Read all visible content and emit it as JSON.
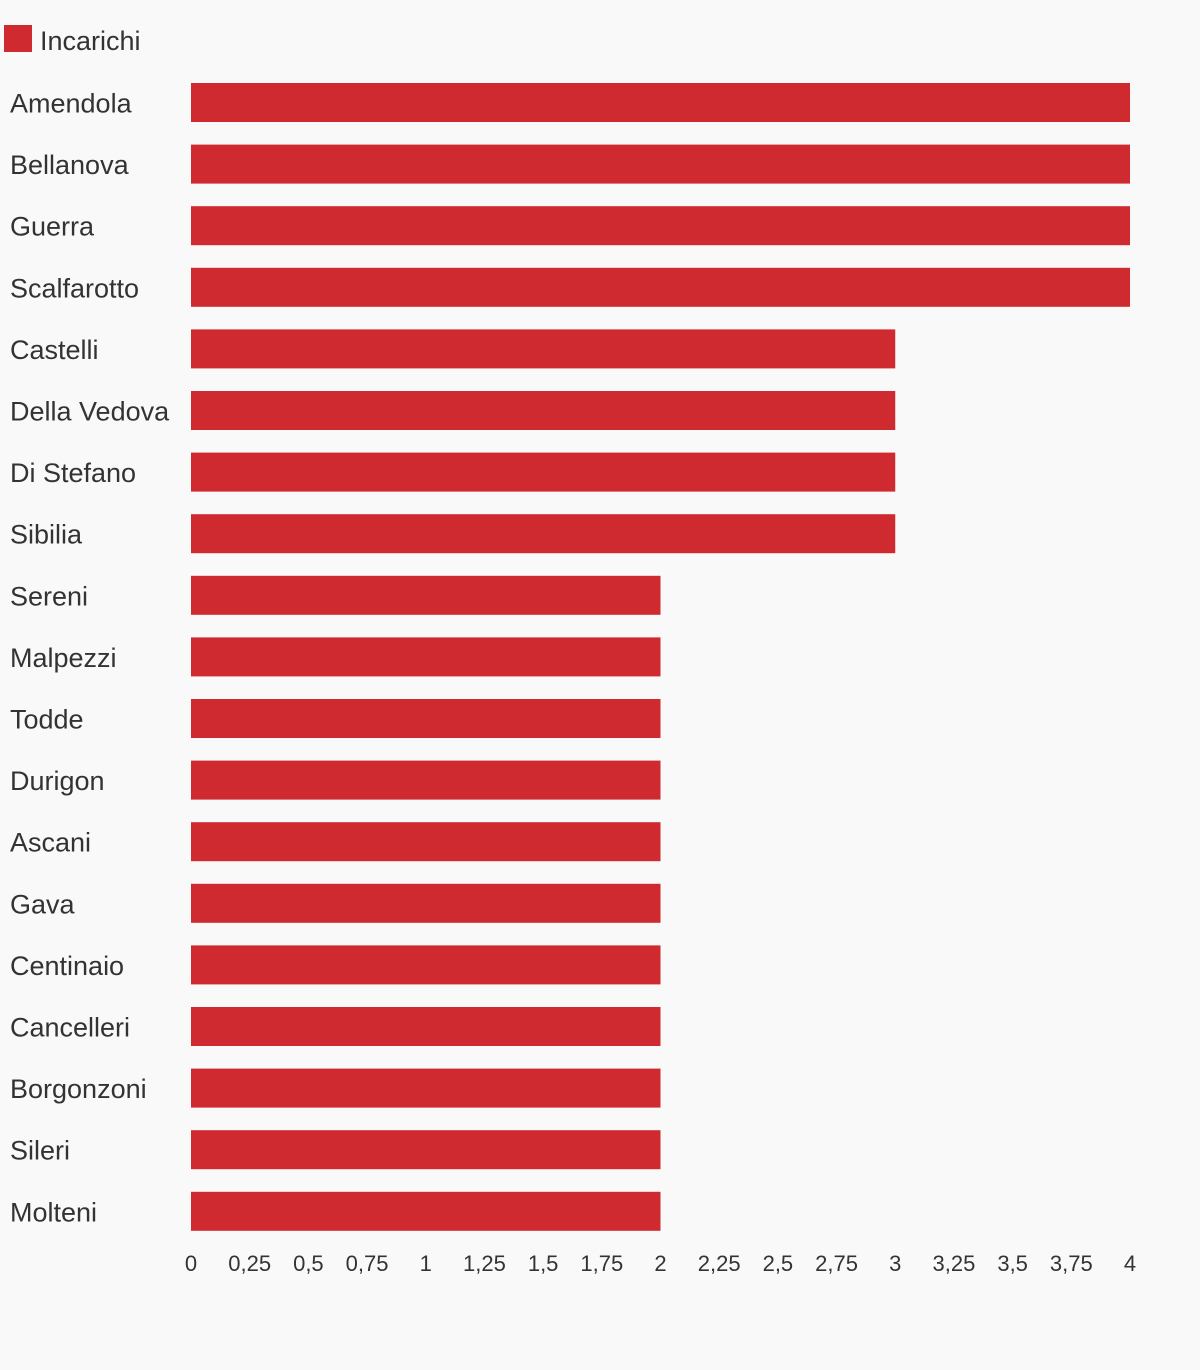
{
  "chart_data": {
    "type": "bar",
    "orientation": "horizontal",
    "legend": {
      "position": "top-left",
      "entries": [
        {
          "name": "Incarichi",
          "color": "#cf2a30"
        }
      ]
    },
    "categories": [
      "Amendola",
      "Bellanova",
      "Guerra",
      "Scalfarotto",
      "Castelli",
      "Della Vedova",
      "Di Stefano",
      "Sibilia",
      "Sereni",
      "Malpezzi",
      "Todde",
      "Durigon",
      "Ascani",
      "Gava",
      "Centinaio",
      "Cancelleri",
      "Borgonzoni",
      "Sileri",
      "Molteni"
    ],
    "series": [
      {
        "name": "Incarichi",
        "color": "#cf2a30",
        "values": [
          4,
          4,
          4,
          4,
          3,
          3,
          3,
          3,
          2,
          2,
          2,
          2,
          2,
          2,
          2,
          2,
          2,
          2,
          2
        ]
      }
    ],
    "xlim": [
      0,
      4
    ],
    "x_ticks": [
      0,
      0.25,
      0.5,
      0.75,
      1,
      1.25,
      1.5,
      1.75,
      2,
      2.25,
      2.5,
      2.75,
      3,
      3.25,
      3.5,
      3.75,
      4
    ],
    "x_tick_labels": [
      "0",
      "0,25",
      "0,5",
      "0,75",
      "1",
      "1,25",
      "1,5",
      "1,75",
      "2",
      "2,25",
      "2,5",
      "2,75",
      "3",
      "3,25",
      "3,5",
      "3,75",
      "4"
    ],
    "grid": false,
    "title": "",
    "xlabel": "",
    "ylabel": ""
  }
}
